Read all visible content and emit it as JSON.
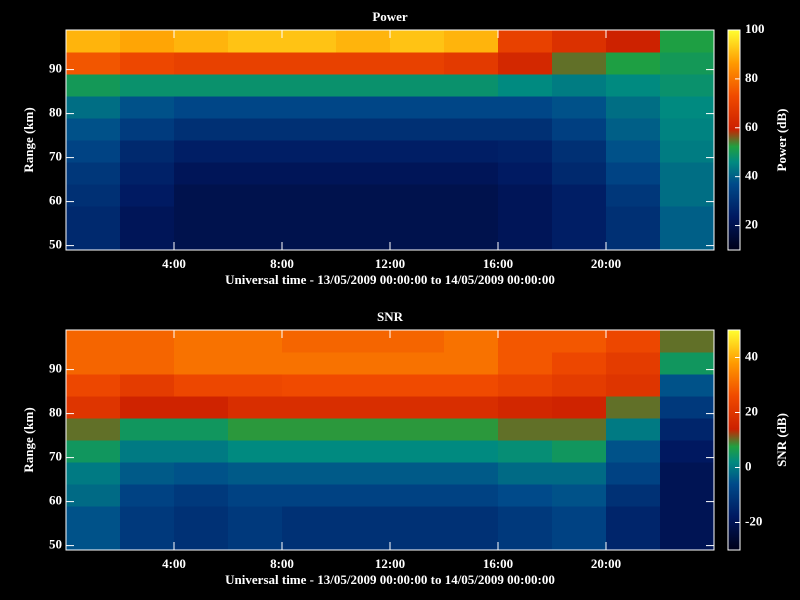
{
  "chart_data": [
    {
      "type": "heatmap",
      "title": "Power",
      "x_label": "Universal time - 13/05/2009 00:00:00 to 14/05/2009 00:00:00",
      "y_label": "Range (km)",
      "colorbar_label": "Power (dB)",
      "x_bins": [
        0,
        2,
        4,
        6,
        8,
        10,
        12,
        14,
        16,
        18,
        20,
        22,
        24
      ],
      "y_bins": [
        49,
        54,
        59,
        64,
        69,
        74,
        79,
        84,
        89,
        94,
        99
      ],
      "values": [
        [
          28,
          22,
          20,
          20,
          20,
          20,
          20,
          20,
          22,
          25,
          30,
          40
        ],
        [
          28,
          22,
          20,
          20,
          20,
          20,
          20,
          20,
          22,
          25,
          30,
          40
        ],
        [
          30,
          24,
          20,
          20,
          20,
          20,
          20,
          20,
          22,
          25,
          32,
          42
        ],
        [
          32,
          26,
          22,
          22,
          22,
          22,
          22,
          22,
          24,
          28,
          35,
          42
        ],
        [
          35,
          28,
          25,
          25,
          25,
          25,
          25,
          25,
          26,
          30,
          38,
          44
        ],
        [
          38,
          33,
          30,
          30,
          30,
          30,
          30,
          30,
          30,
          34,
          40,
          45
        ],
        [
          42,
          38,
          36,
          36,
          36,
          36,
          36,
          36,
          36,
          38,
          42,
          46
        ],
        [
          50,
          48,
          48,
          48,
          48,
          48,
          48,
          48,
          46,
          44,
          46,
          48
        ],
        [
          75,
          72,
          70,
          70,
          70,
          70,
          70,
          68,
          62,
          55,
          52,
          50
        ],
        [
          90,
          88,
          90,
          92,
          92,
          90,
          92,
          90,
          70,
          65,
          60,
          52
        ]
      ],
      "xlim": [
        0,
        24
      ],
      "ylim": [
        49,
        99
      ],
      "xticks": [
        {
          "value": 4,
          "label": "4:00"
        },
        {
          "value": 8,
          "label": "8:00"
        },
        {
          "value": 12,
          "label": "12:00"
        },
        {
          "value": 16,
          "label": "16:00"
        },
        {
          "value": 20,
          "label": "20:00"
        }
      ],
      "yticks": [
        50,
        60,
        70,
        80,
        90
      ],
      "clim": [
        10,
        100
      ],
      "cticks": [
        20,
        40,
        60,
        80,
        100
      ],
      "colormap": [
        {
          "stop": 0,
          "color": "#000018"
        },
        {
          "stop": 0.15,
          "color": "#001860"
        },
        {
          "stop": 0.3,
          "color": "#004a8a"
        },
        {
          "stop": 0.4,
          "color": "#008a80"
        },
        {
          "stop": 0.47,
          "color": "#20a040"
        },
        {
          "stop": 0.55,
          "color": "#cc2000"
        },
        {
          "stop": 0.7,
          "color": "#f04a00"
        },
        {
          "stop": 0.85,
          "color": "#ff9a00"
        },
        {
          "stop": 1,
          "color": "#ffff30"
        }
      ]
    },
    {
      "type": "heatmap",
      "title": "SNR",
      "x_label": "Universal time - 13/05/2009 00:00:00 to 14/05/2009 00:00:00",
      "y_label": "Range (km)",
      "colorbar_label": "SNR (dB)",
      "x_bins": [
        0,
        2,
        4,
        6,
        8,
        10,
        12,
        14,
        16,
        18,
        20,
        22,
        24
      ],
      "y_bins": [
        49,
        54,
        59,
        64,
        69,
        74,
        79,
        84,
        89,
        94,
        99
      ],
      "values": [
        [
          -5,
          -10,
          -12,
          -10,
          -12,
          -12,
          -12,
          -12,
          -10,
          -8,
          -15,
          -20
        ],
        [
          -5,
          -10,
          -12,
          -10,
          -12,
          -12,
          -12,
          -12,
          -10,
          -8,
          -15,
          -20
        ],
        [
          -2,
          -8,
          -10,
          -8,
          -8,
          -8,
          -8,
          -8,
          -6,
          -5,
          -12,
          -20
        ],
        [
          0,
          -4,
          -5,
          -4,
          -4,
          -4,
          -4,
          -4,
          -2,
          -2,
          -8,
          -20
        ],
        [
          5,
          0,
          0,
          2,
          2,
          2,
          2,
          2,
          3,
          5,
          -5,
          -18
        ],
        [
          10,
          5,
          5,
          8,
          8,
          8,
          8,
          8,
          10,
          10,
          0,
          -15
        ],
        [
          20,
          15,
          15,
          18,
          18,
          18,
          18,
          18,
          16,
          15,
          10,
          -10
        ],
        [
          25,
          22,
          25,
          25,
          26,
          26,
          26,
          26,
          24,
          22,
          20,
          -5
        ],
        [
          30,
          30,
          32,
          32,
          32,
          32,
          32,
          32,
          28,
          25,
          22,
          5
        ],
        [
          30,
          30,
          32,
          32,
          30,
          30,
          30,
          32,
          28,
          28,
          25,
          10
        ]
      ],
      "xlim": [
        0,
        24
      ],
      "ylim": [
        49,
        99
      ],
      "xticks": [
        {
          "value": 4,
          "label": "4:00"
        },
        {
          "value": 8,
          "label": "8:00"
        },
        {
          "value": 12,
          "label": "12:00"
        },
        {
          "value": 16,
          "label": "16:00"
        },
        {
          "value": 20,
          "label": "20:00"
        }
      ],
      "yticks": [
        50,
        60,
        70,
        80,
        90
      ],
      "clim": [
        -30,
        50
      ],
      "cticks": [
        -20,
        0,
        20,
        40
      ],
      "colormap": [
        {
          "stop": 0,
          "color": "#000018"
        },
        {
          "stop": 0.15,
          "color": "#001860"
        },
        {
          "stop": 0.3,
          "color": "#004a8a"
        },
        {
          "stop": 0.4,
          "color": "#008a80"
        },
        {
          "stop": 0.47,
          "color": "#20a040"
        },
        {
          "stop": 0.55,
          "color": "#cc2000"
        },
        {
          "stop": 0.7,
          "color": "#f04a00"
        },
        {
          "stop": 0.85,
          "color": "#ff9a00"
        },
        {
          "stop": 1,
          "color": "#ffff30"
        }
      ]
    }
  ]
}
